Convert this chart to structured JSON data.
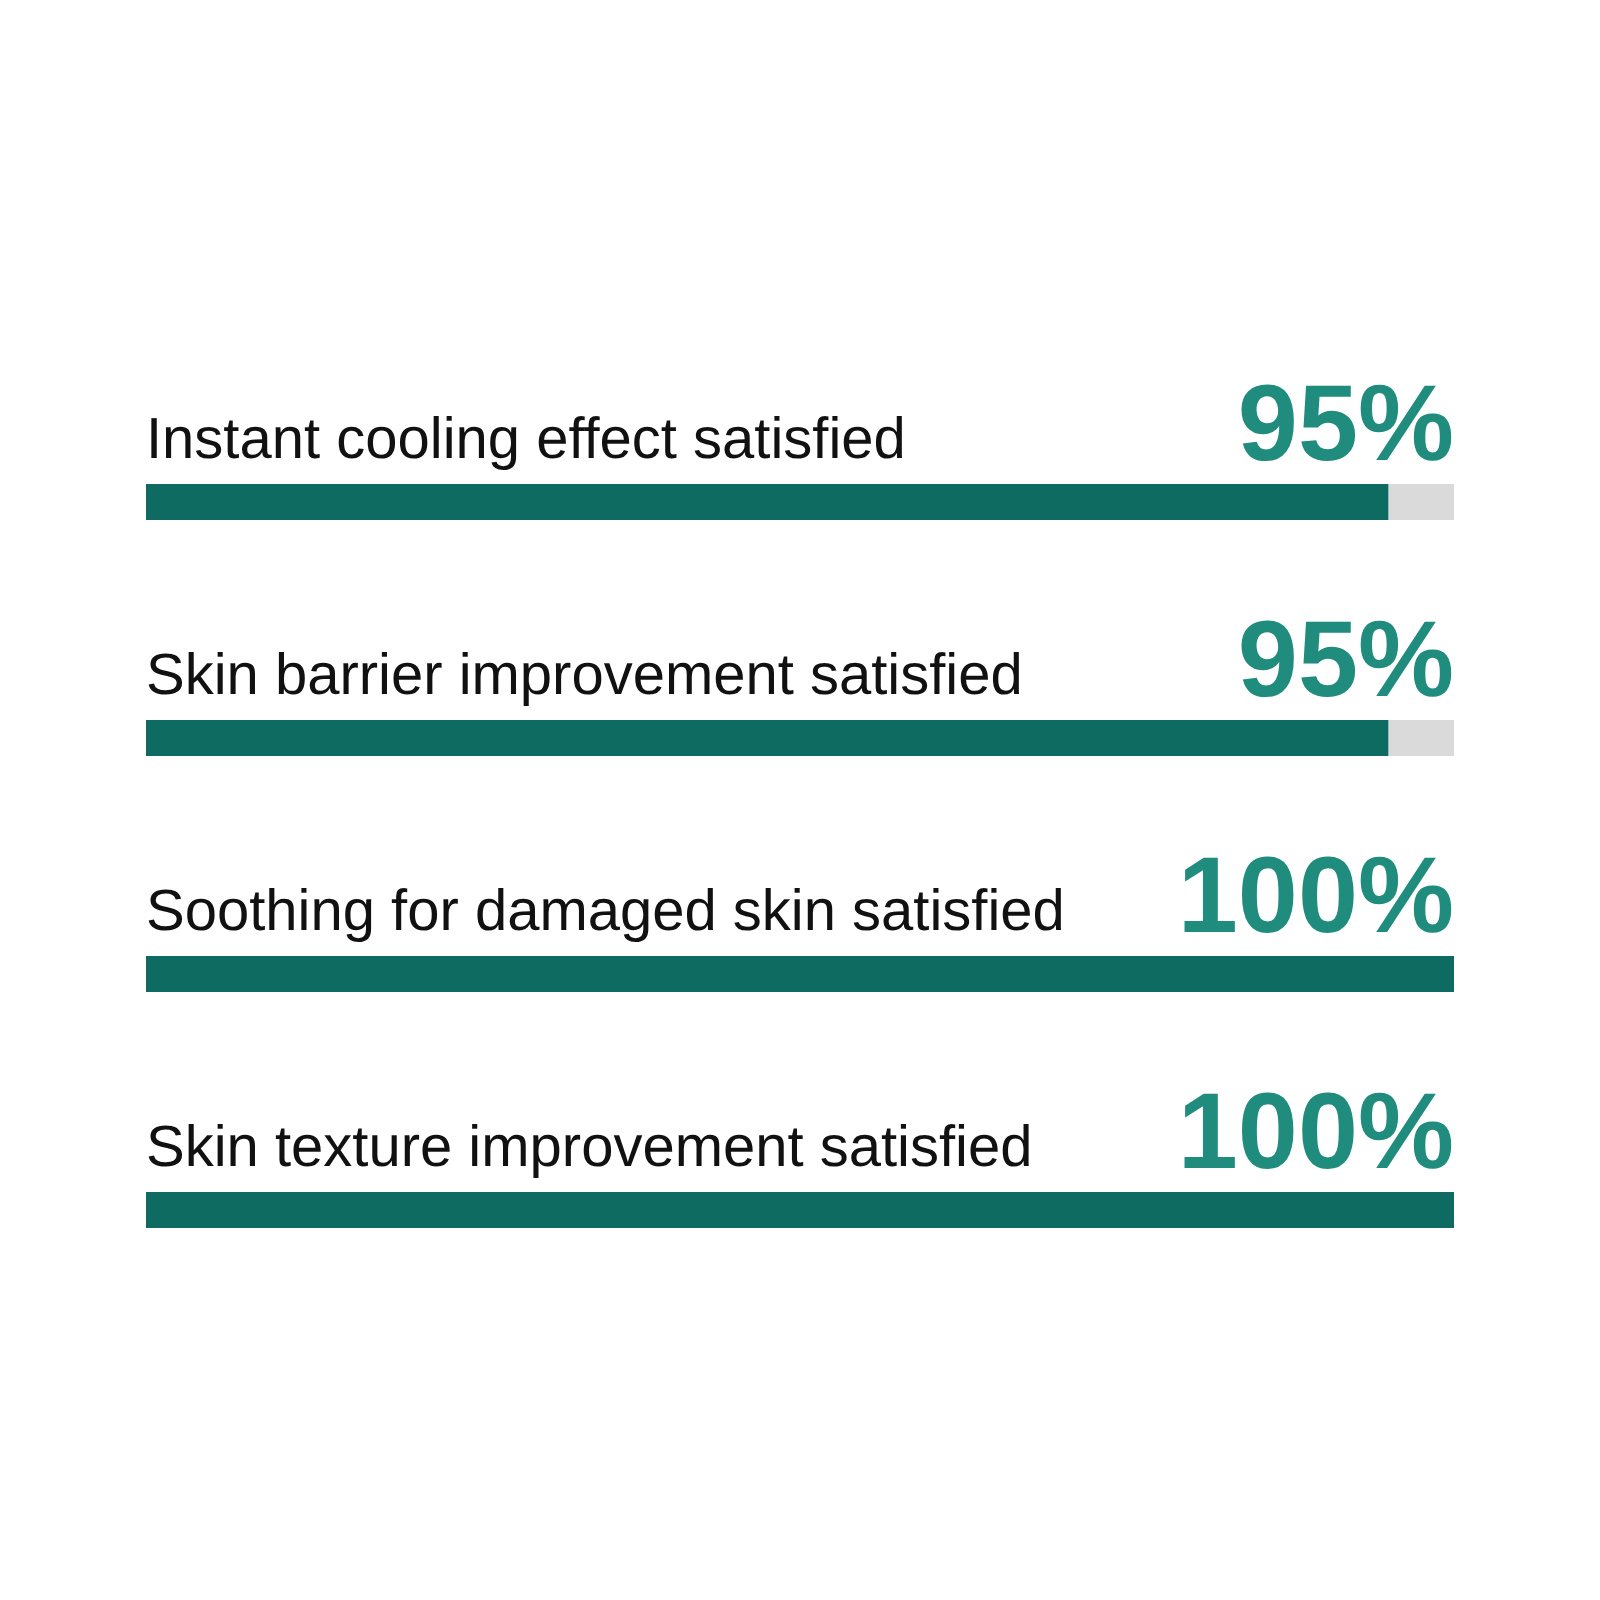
{
  "chart_data": {
    "type": "bar",
    "orientation": "horizontal",
    "stacked": true,
    "categories": [
      "Instant cooling effect satisfied",
      "Skin barrier improvement satisfied",
      "Soothing for damaged skin satisfied",
      "Skin texture improvement satisfied"
    ],
    "series": [
      {
        "color": "#0e6b62",
        "values": [
          95,
          95,
          100,
          100
        ],
        "value_labels": [
          "95%",
          "95%",
          "100%",
          "100%"
        ]
      },
      {
        "color": "#dadada",
        "values": [
          5,
          5,
          0,
          0
        ]
      }
    ],
    "xlim": [
      0,
      100
    ]
  }
}
